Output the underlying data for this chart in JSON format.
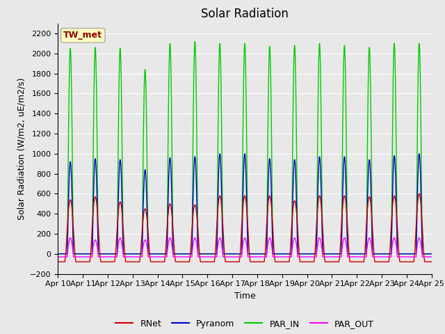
{
  "title": "Solar Radiation",
  "ylabel": "Solar Radiation (W/m2, uE/m2/s)",
  "xlabel": "Time",
  "ylim": [
    -200,
    2300
  ],
  "yticks": [
    -200,
    0,
    200,
    400,
    600,
    800,
    1000,
    1200,
    1400,
    1600,
    1800,
    2000,
    2200
  ],
  "num_days": 15,
  "series_colors": {
    "RNet": "#cc0000",
    "Pyranom": "#0000cc",
    "PAR_IN": "#00cc00",
    "PAR_OUT": "#ff00ff"
  },
  "station_label": "TW_met",
  "station_label_color": "#880000",
  "station_box_facecolor": "#ffffc0",
  "station_box_edgecolor": "#aaaaaa",
  "fig_facecolor": "#e8e8e8",
  "axes_facecolor": "#e8e8e8",
  "grid_color": "#ffffff",
  "title_fontsize": 12,
  "label_fontsize": 9,
  "tick_fontsize": 8,
  "date_labels": [
    "Apr 10",
    "Apr 11",
    "Apr 12",
    "Apr 13",
    "Apr 14",
    "Apr 15",
    "Apr 16",
    "Apr 17",
    "Apr 18",
    "Apr 19",
    "Apr 20",
    "Apr 21",
    "Apr 22",
    "Apr 23",
    "Apr 24",
    "Apr 25"
  ],
  "PAR_IN_peaks": [
    2050,
    2060,
    2050,
    1840,
    2100,
    2120,
    2100,
    2100,
    2070,
    2080,
    2100,
    2080,
    2060,
    2100,
    2100
  ],
  "Pyranom_peaks": [
    920,
    950,
    940,
    840,
    960,
    970,
    1000,
    1000,
    950,
    940,
    970,
    970,
    940,
    980,
    1000
  ],
  "RNet_peaks": [
    540,
    570,
    520,
    450,
    500,
    490,
    580,
    580,
    580,
    530,
    580,
    580,
    570,
    580,
    600
  ],
  "PAR_OUT_peaks": [
    160,
    140,
    160,
    140,
    160,
    160,
    160,
    160,
    160,
    160,
    160,
    160,
    160,
    160,
    160
  ],
  "RNet_night": -80,
  "PAR_OUT_night": -30
}
